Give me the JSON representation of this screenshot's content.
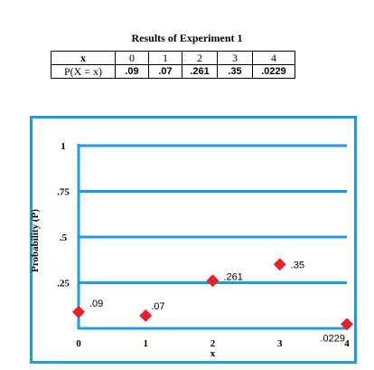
{
  "table": {
    "title": "Results of Experiment 1",
    "x_header": "x",
    "p_header": "P(X = x)",
    "x_values": [
      "0",
      "1",
      "2",
      "3",
      "4"
    ],
    "p_values": [
      ".09",
      ".07",
      ".261",
      ".35",
      ".0229"
    ]
  },
  "chart_data": {
    "type": "scatter",
    "x": [
      0,
      1,
      2,
      3,
      4
    ],
    "y": [
      0.09,
      0.07,
      0.261,
      0.35,
      0.0229
    ],
    "point_labels": [
      ".09",
      ".07",
      ".261",
      ".35",
      ".0229"
    ],
    "xlabel": "x",
    "ylabel": "Probability (P)",
    "x_ticks": [
      "0",
      "1",
      "2",
      "3",
      "4"
    ],
    "y_ticks": [
      {
        "value": 0.25,
        "label": ".25"
      },
      {
        "value": 0.5,
        "label": ".5"
      },
      {
        "value": 0.75,
        "label": ".75"
      },
      {
        "value": 1,
        "label": "1"
      }
    ],
    "xlim": [
      0,
      4
    ],
    "ylim": [
      0,
      1
    ],
    "grid": true,
    "marker": "diamond",
    "marker_color": "#e8202a",
    "grid_color": "#1e9be8",
    "frame_color": "#1e9be8"
  }
}
